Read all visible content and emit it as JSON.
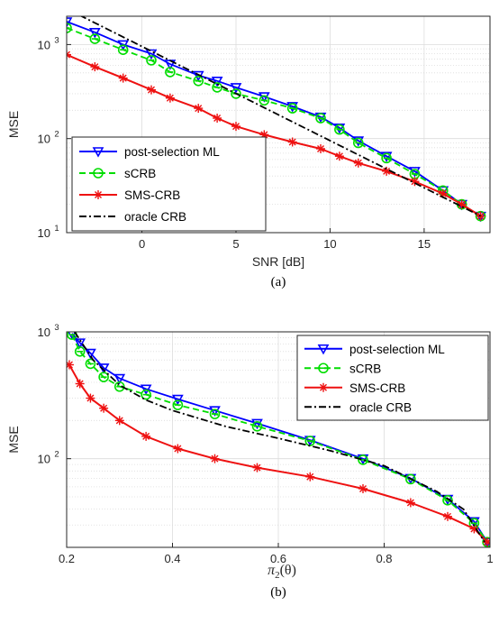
{
  "colors": {
    "post_selection_ml": "#0000ff",
    "scrb": "#00dd00",
    "sms_crb": "#ee1111",
    "oracle_crb": "#000000",
    "grid": "#dcdcdc",
    "axis": "#262626"
  },
  "chart_data": [
    {
      "type": "line",
      "caption": "(a)",
      "xlabel": "SNR [dB]",
      "ylabel": "MSE",
      "xlim": [
        -4,
        18.5
      ],
      "ylim": [
        10,
        2000
      ],
      "yscale": "log",
      "grid": true,
      "legend_position": "bottom-left",
      "xticks": [
        0,
        5,
        10,
        15
      ],
      "xtick_labels": [
        "0",
        "5",
        "10",
        "15"
      ],
      "yticks": [
        10,
        100,
        1000
      ],
      "ytick_labels": [
        {
          "base": "10",
          "exp": "1"
        },
        {
          "base": "10",
          "exp": "2"
        },
        {
          "base": "10",
          "exp": "3"
        }
      ],
      "series": [
        {
          "name": "post-selection ML",
          "style": "solid",
          "marker": "triangle-down",
          "x": [
            -4,
            -2.5,
            -1,
            0.5,
            1.5,
            3,
            4,
            5,
            6.5,
            8,
            9.5,
            10.5,
            11.5,
            13,
            14.5,
            16,
            17,
            18
          ],
          "y": [
            1750,
            1350,
            1000,
            800,
            620,
            470,
            410,
            350,
            280,
            220,
            170,
            130,
            95,
            65,
            45,
            28,
            20,
            15
          ]
        },
        {
          "name": "sCRB",
          "style": "dashed",
          "marker": "circle",
          "x": [
            -4,
            -2.5,
            -1,
            0.5,
            1.5,
            3,
            4,
            5,
            6.5,
            8,
            9.5,
            10.5,
            11.5,
            13,
            14.5,
            16,
            17,
            18
          ],
          "y": [
            1500,
            1150,
            880,
            680,
            510,
            410,
            350,
            300,
            255,
            210,
            165,
            125,
            90,
            62,
            42,
            28,
            20,
            15
          ]
        },
        {
          "name": "SMS-CRB",
          "style": "solid",
          "marker": "asterisk",
          "x": [
            -4,
            -2.5,
            -1,
            0.5,
            1.5,
            3,
            4,
            5,
            6.5,
            8,
            9.5,
            10.5,
            11.5,
            13,
            14.5,
            16,
            17,
            18
          ],
          "y": [
            780,
            580,
            440,
            330,
            270,
            210,
            165,
            135,
            110,
            92,
            78,
            65,
            55,
            45,
            35,
            26,
            20,
            15
          ]
        },
        {
          "name": "oracle CRB",
          "style": "dashdot",
          "marker": "none",
          "x": [
            -4,
            18
          ],
          "y": [
            2400,
            15
          ]
        }
      ]
    },
    {
      "type": "line",
      "caption": "(b)",
      "xlabel": "π₂(θ)",
      "xlabel_main": "π",
      "xlabel_sub": "2",
      "xlabel_arg": "(θ)",
      "ylabel": "MSE",
      "xlim": [
        0.2,
        1.0
      ],
      "ylim": [
        20,
        1000
      ],
      "yscale": "log",
      "grid": true,
      "legend_position": "top-right",
      "xticks": [
        0.2,
        0.4,
        0.6,
        0.8,
        1.0
      ],
      "xtick_labels": [
        "0.2",
        "0.4",
        "0.6",
        "0.8",
        "1"
      ],
      "yticks": [
        100,
        1000
      ],
      "ytick_labels": [
        {
          "base": "10",
          "exp": "2"
        },
        {
          "base": "10",
          "exp": "3"
        }
      ],
      "series": [
        {
          "name": "post-selection ML",
          "style": "solid",
          "marker": "triangle-down",
          "x": [
            0.21,
            0.225,
            0.245,
            0.27,
            0.3,
            0.35,
            0.41,
            0.48,
            0.56,
            0.66,
            0.76,
            0.85,
            0.92,
            0.97,
            0.995
          ],
          "y": [
            970,
            820,
            680,
            520,
            430,
            355,
            295,
            240,
            190,
            140,
            100,
            70,
            48,
            32,
            22
          ]
        },
        {
          "name": "sCRB",
          "style": "dashed",
          "marker": "circle",
          "x": [
            0.21,
            0.225,
            0.245,
            0.27,
            0.3,
            0.35,
            0.41,
            0.48,
            0.56,
            0.66,
            0.76,
            0.85,
            0.92,
            0.97,
            0.995
          ],
          "y": [
            950,
            700,
            560,
            440,
            370,
            320,
            265,
            225,
            180,
            138,
            98,
            69,
            47,
            31,
            22
          ]
        },
        {
          "name": "SMS-CRB",
          "style": "solid",
          "marker": "asterisk",
          "x": [
            0.205,
            0.225,
            0.245,
            0.27,
            0.3,
            0.35,
            0.41,
            0.48,
            0.56,
            0.66,
            0.76,
            0.85,
            0.92,
            0.97,
            0.995
          ],
          "y": [
            550,
            390,
            300,
            250,
            200,
            150,
            120,
            100,
            85,
            72,
            58,
            45,
            35,
            28,
            22
          ]
        },
        {
          "name": "oracle CRB",
          "style": "dashdot",
          "marker": "none",
          "x": [
            0.215,
            0.25,
            0.3,
            0.35,
            0.4,
            0.5,
            0.6,
            0.7,
            0.8,
            0.9,
            0.95,
            0.99
          ],
          "y": [
            1000,
            600,
            380,
            290,
            240,
            180,
            145,
            115,
            88,
            55,
            40,
            22
          ]
        }
      ]
    }
  ]
}
